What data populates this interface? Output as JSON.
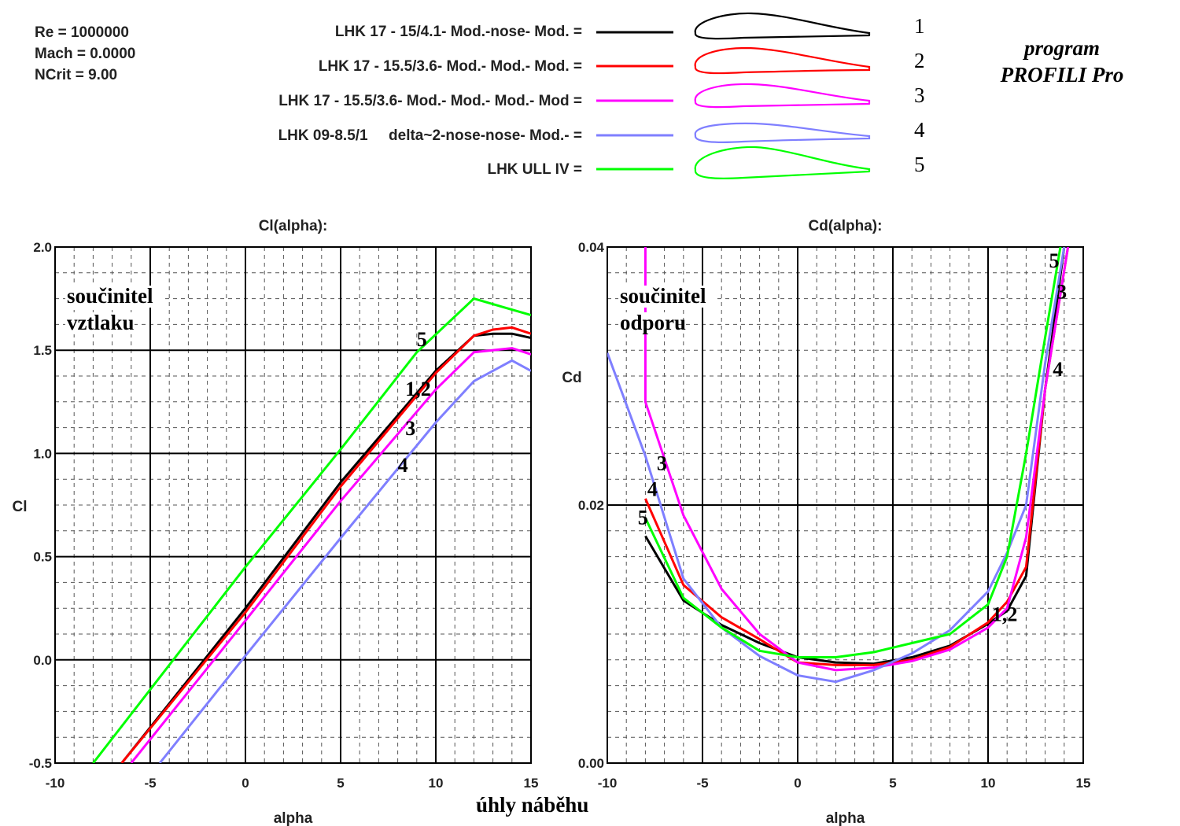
{
  "header": {
    "params": [
      "Re = 1000000",
      "Mach = 0.0000",
      "NCrit = 9.00"
    ],
    "program": [
      "program",
      "PROFILI Pro"
    ]
  },
  "legend": [
    {
      "name": "LHK 17 - 15/4.1- Mod.-nose- Mod. =",
      "number": "1",
      "color": "#000000"
    },
    {
      "name": "LHK 17 - 15.5/3.6- Mod.- Mod.- Mod. =",
      "number": "2",
      "color": "#ff0000"
    },
    {
      "name": "LHK 17 - 15.5/3.6- Mod.- Mod.- Mod.- Mod =",
      "number": "3",
      "color": "#ff00ff"
    },
    {
      "name": "LHK 09-8.5/1     delta~2-nose-nose- Mod.- =",
      "number": "4",
      "color": "#7f7fff"
    },
    {
      "name": "LHK ULL IV =",
      "number": "5",
      "color": "#00ff00"
    }
  ],
  "bottom_label": "úhly náběhu",
  "chart_data": [
    {
      "type": "line",
      "title": "Cl(alpha):",
      "xlabel": "alpha",
      "ylabel": "Cl",
      "annotation": [
        "součinitel",
        "vztlaku"
      ],
      "xlim": [
        -10,
        15
      ],
      "ylim": [
        -0.5,
        2.0
      ],
      "xticks": [
        "-10",
        "-5",
        "0",
        "5",
        "10",
        "15"
      ],
      "yticks": [
        "-0.5",
        "0.0",
        "0.5",
        "1.0",
        "1.5",
        "2.0"
      ],
      "grid": true,
      "series": [
        {
          "name": "1",
          "color": "#000000",
          "x": [
            -6.5,
            0,
            5,
            10,
            12,
            13,
            14,
            15
          ],
          "y": [
            -0.5,
            0.25,
            0.86,
            1.4,
            1.57,
            1.58,
            1.58,
            1.56
          ]
        },
        {
          "name": "2",
          "color": "#ff0000",
          "x": [
            -6.5,
            0,
            5,
            10,
            12,
            13,
            14,
            15
          ],
          "y": [
            -0.5,
            0.23,
            0.84,
            1.39,
            1.57,
            1.6,
            1.61,
            1.58
          ]
        },
        {
          "name": "3",
          "color": "#ff00ff",
          "x": [
            -6.0,
            0,
            5,
            10,
            12,
            14,
            15
          ],
          "y": [
            -0.5,
            0.19,
            0.77,
            1.31,
            1.49,
            1.51,
            1.48
          ]
        },
        {
          "name": "4",
          "color": "#7f7fff",
          "x": [
            -4.5,
            0,
            5,
            10,
            12,
            14,
            15
          ],
          "y": [
            -0.5,
            0.02,
            0.59,
            1.15,
            1.35,
            1.45,
            1.4
          ]
        },
        {
          "name": "5",
          "color": "#00ff00",
          "x": [
            -8.0,
            0,
            5,
            9,
            12,
            15
          ],
          "y": [
            -0.5,
            0.45,
            1.02,
            1.49,
            1.75,
            1.67
          ]
        }
      ],
      "labels": [
        {
          "text": "5",
          "x": 9.0,
          "y": 1.52
        },
        {
          "text": "1,2",
          "x": 8.4,
          "y": 1.28
        },
        {
          "text": "3",
          "x": 8.4,
          "y": 1.09
        },
        {
          "text": "4",
          "x": 8.0,
          "y": 0.91
        }
      ]
    },
    {
      "type": "line",
      "title": "Cd(alpha):",
      "xlabel": "alpha",
      "ylabel": "Cd",
      "annotation": [
        "součinitel",
        "odporu"
      ],
      "xlim": [
        -10,
        15
      ],
      "ylim": [
        0.0,
        0.04
      ],
      "xticks": [
        "-10",
        "-5",
        "0",
        "5",
        "10",
        "15"
      ],
      "yticks": [
        "0.00",
        "0.02",
        "0.04"
      ],
      "grid": true,
      "series": [
        {
          "name": "1",
          "color": "#000000",
          "x": [
            -8,
            -6,
            -4,
            -2,
            0,
            2,
            4,
            6,
            8,
            10,
            11,
            12,
            13,
            14
          ],
          "y": [
            0.0176,
            0.0126,
            0.0107,
            0.0093,
            0.0082,
            0.0078,
            0.0077,
            0.0082,
            0.0091,
            0.0108,
            0.0118,
            0.0145,
            0.029,
            0.04
          ]
        },
        {
          "name": "2",
          "color": "#ff0000",
          "x": [
            -8,
            -6,
            -4,
            -2,
            0,
            2,
            4,
            6,
            8,
            10,
            11,
            12,
            13,
            14.2
          ],
          "y": [
            0.0205,
            0.0138,
            0.0113,
            0.0096,
            0.0078,
            0.0076,
            0.0076,
            0.008,
            0.009,
            0.0109,
            0.0125,
            0.0152,
            0.029,
            0.04
          ]
        },
        {
          "name": "3",
          "color": "#ff00ff",
          "x": [
            -8,
            -8,
            -6,
            -4,
            -2,
            0,
            2,
            4,
            6,
            8,
            10,
            11,
            12,
            13,
            14.2
          ],
          "y": [
            0.04,
            0.028,
            0.0192,
            0.0135,
            0.01,
            0.0078,
            0.0072,
            0.0074,
            0.0079,
            0.0088,
            0.0105,
            0.012,
            0.0175,
            0.029,
            0.04
          ]
        },
        {
          "name": "4",
          "color": "#7f7fff",
          "x": [
            -10,
            -8,
            -6,
            -4,
            -2,
            0,
            2,
            4,
            6,
            8,
            10,
            11,
            12,
            13,
            14
          ],
          "y": [
            0.0318,
            0.0238,
            0.0143,
            0.0105,
            0.0083,
            0.0068,
            0.0063,
            0.0072,
            0.0085,
            0.0103,
            0.0133,
            0.0163,
            0.02,
            0.031,
            0.04
          ]
        },
        {
          "name": "5",
          "color": "#00ff00",
          "x": [
            -8,
            -6,
            -4,
            -2,
            0,
            2,
            4,
            6,
            8,
            10,
            11,
            12,
            13,
            13.8
          ],
          "y": [
            0.019,
            0.0128,
            0.0105,
            0.0087,
            0.0082,
            0.0082,
            0.0086,
            0.0093,
            0.01,
            0.0123,
            0.016,
            0.024,
            0.033,
            0.04
          ]
        }
      ],
      "labels": [
        {
          "text": "5",
          "x": 13.2,
          "y": 0.0384
        },
        {
          "text": "3",
          "x": 13.6,
          "y": 0.036
        },
        {
          "text": "4",
          "x": 13.4,
          "y": 0.03
        },
        {
          "text": "3",
          "x": -7.4,
          "y": 0.0227
        },
        {
          "text": "4",
          "x": -7.9,
          "y": 0.0207
        },
        {
          "text": "5",
          "x": -8.4,
          "y": 0.0185
        },
        {
          "text": "1,2",
          "x": 10.2,
          "y": 0.011
        }
      ]
    }
  ]
}
